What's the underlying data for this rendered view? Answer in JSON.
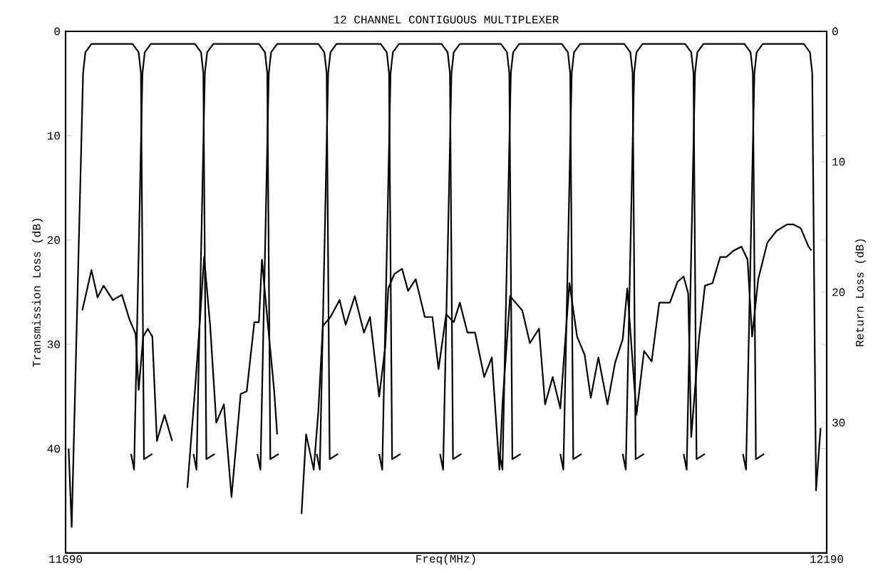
{
  "chart_data": {
    "type": "line",
    "title": "12 CHANNEL CONTIGUOUS MULTIPLEXER",
    "xlabel": "Freq(MHz)",
    "ylabel": "Transmission Loss (dB)",
    "y2label": "Return Loss (dB)",
    "xlim": [
      11690,
      12190
    ],
    "xticks": [
      11690,
      12190
    ],
    "ylim": [
      50,
      0
    ],
    "yticks": [
      0,
      10,
      20,
      30,
      40
    ],
    "y2lim": [
      40,
      0
    ],
    "y2ticks": [
      0,
      10,
      20,
      30
    ],
    "grid": false,
    "marker": "none",
    "line_style": "solid",
    "series": [
      {
        "color": "#000000",
        "x": [
          11692,
          11694,
          11701.5,
          11703,
          11707,
          11734,
          11738,
          11739.5,
          11741.5,
          11747
        ],
        "values": [
          40,
          47.5,
          4,
          2,
          1.2,
          1.2,
          2,
          4,
          41,
          40.5
        ]
      },
      {
        "color": "#000000",
        "x": [
          11733,
          11735,
          11740.5,
          11742,
          11746,
          11775,
          11779,
          11780.5,
          11782.5,
          11788
        ],
        "values": [
          40.5,
          42,
          4,
          2,
          1.2,
          1.2,
          2,
          4,
          41,
          40.5
        ]
      },
      {
        "color": "#000000",
        "x": [
          11774,
          11776,
          11781.5,
          11783,
          11787,
          11817,
          11821,
          11822.5,
          11824.5,
          11830
        ],
        "values": [
          40.5,
          42,
          4,
          2,
          1.2,
          1.2,
          2,
          4,
          41,
          40.5
        ]
      },
      {
        "color": "#000000",
        "x": [
          11816,
          11818,
          11823.5,
          11825,
          11829,
          11856,
          11860,
          11861.5,
          11863.5,
          11869
        ],
        "values": [
          40.5,
          42,
          4,
          2,
          1.2,
          1.2,
          2,
          4,
          41,
          40.5
        ]
      },
      {
        "color": "#000000",
        "x": [
          11855,
          11857,
          11862.5,
          11864,
          11868,
          11897,
          11901,
          11902.5,
          11904.5,
          11910
        ],
        "values": [
          40.5,
          42,
          4,
          2,
          1.2,
          1.2,
          2,
          4,
          41,
          40.5
        ]
      },
      {
        "color": "#000000",
        "x": [
          11896,
          11898,
          11903.5,
          11905,
          11909,
          11937,
          11941,
          11942.5,
          11944.5,
          11950
        ],
        "values": [
          40.5,
          42,
          4,
          2,
          1.2,
          1.2,
          2,
          4,
          41,
          40.5
        ]
      },
      {
        "color": "#000000",
        "x": [
          11936,
          11938,
          11943.5,
          11945,
          11949,
          11976,
          11980,
          11981.5,
          11983.5,
          11989
        ],
        "values": [
          40.5,
          42,
          4,
          2,
          1.2,
          1.2,
          2,
          4,
          41,
          40.5
        ]
      },
      {
        "color": "#000000",
        "x": [
          11975,
          11977,
          11982.5,
          11984,
          11988,
          12016,
          12020,
          12021.5,
          12023.5,
          12029
        ],
        "values": [
          40.5,
          42,
          4,
          2,
          1.2,
          1.2,
          2,
          4,
          41,
          40.5
        ]
      },
      {
        "color": "#000000",
        "x": [
          12015,
          12017,
          12022.5,
          12024,
          12028,
          12057,
          12061,
          12062.5,
          12064.5,
          12070
        ],
        "values": [
          40.5,
          42,
          4,
          2,
          1.2,
          1.2,
          2,
          4,
          41,
          40.5
        ]
      },
      {
        "color": "#000000",
        "x": [
          12056,
          12058,
          12063.5,
          12065,
          12069,
          12097,
          12101,
          12102.5,
          12104.5,
          12110
        ],
        "values": [
          40.5,
          42,
          4,
          2,
          1.2,
          1.2,
          2,
          4,
          41,
          40.5
        ]
      },
      {
        "color": "#000000",
        "x": [
          12096,
          12098,
          12103.5,
          12105,
          12109,
          12136,
          12140,
          12141.5,
          12143.5,
          12149
        ],
        "values": [
          40.5,
          42,
          4,
          2,
          1.2,
          1.2,
          2,
          4,
          41,
          40.5
        ]
      },
      {
        "color": "#000000",
        "x": [
          12135,
          12137,
          12142.5,
          12144,
          12148,
          12175,
          12179,
          12180.5,
          12183,
          12186
        ],
        "values": [
          40.5,
          42,
          4,
          2,
          1.2,
          1.2,
          2,
          4,
          44,
          38
        ]
      },
      {
        "color": "#000000",
        "axis": "y2",
        "x": [
          11701,
          11707,
          11711,
          11715,
          11721,
          11727,
          11732,
          11736,
          11738,
          11741,
          11744,
          11747,
          11750,
          11755,
          11760,
          11765,
          11770,
          11775,
          11778,
          11781,
          11785,
          11789,
          11794,
          11799,
          11805,
          11809,
          11814,
          11817,
          11819,
          11823,
          11827,
          11829,
          11837,
          11845,
          11848,
          11853,
          11856,
          11859,
          11864,
          11870,
          11874,
          11880,
          11886,
          11890,
          11896,
          11900,
          11902,
          11906,
          11911,
          11915,
          11920,
          11926,
          11931,
          11935,
          11940,
          11945,
          11949,
          11954,
          11959,
          11965,
          11970,
          11975,
          11977,
          11982,
          11990,
          11995,
          12001,
          12005,
          12010,
          12015,
          12021,
          12026,
          12031,
          12035,
          12040,
          12046,
          12051,
          12056,
          12059,
          12065,
          12070,
          12075,
          12080,
          12087,
          12092,
          12096,
          12099,
          12101,
          12106,
          12110,
          12115,
          12120,
          12124,
          12129,
          12134,
          12138,
          12141,
          12145,
          12151,
          12157,
          12164,
          12168,
          12173,
          12178,
          12180
        ],
        "values": [
          21.4,
          18.3,
          20.4,
          19.5,
          20.6,
          20.2,
          22.1,
          23.2,
          27.5,
          23.4,
          22.8,
          23.4,
          31.4,
          29.4,
          31.4,
          null,
          35,
          27.5,
          22.6,
          17.3,
          22.6,
          30,
          28.6,
          35.7,
          27.8,
          27.6,
          22.3,
          22.3,
          17.5,
          22.6,
          27.5,
          30.9,
          null,
          37,
          30.9,
          33.6,
          29.2,
          22.6,
          21.9,
          20.6,
          22.5,
          20.3,
          23.1,
          21.9,
          28,
          24.2,
          19.7,
          18.6,
          18.2,
          19.9,
          19,
          21.9,
          21.9,
          25.9,
          21.7,
          22.3,
          20.8,
          23.1,
          23.1,
          26.5,
          25,
          33.6,
          28.6,
          20.3,
          21.4,
          23.9,
          22.8,
          28.6,
          26.5,
          28.9,
          19.3,
          23.4,
          24.8,
          28.1,
          25,
          28.6,
          25.4,
          23.6,
          19.7,
          29.4,
          24.5,
          25.3,
          20.8,
          20.8,
          19.2,
          18.8,
          20.1,
          31.1,
          23.7,
          19.5,
          19.3,
          17.3,
          17.3,
          16.8,
          16.5,
          17.5,
          23.4,
          19,
          16.2,
          15.3,
          14.8,
          14.8,
          15.1,
          16.5,
          16.8
        ]
      }
    ]
  }
}
